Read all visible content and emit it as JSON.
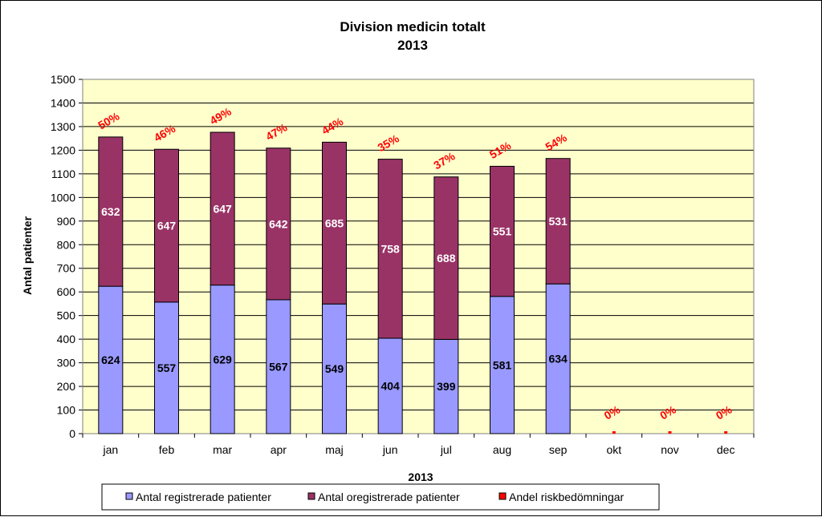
{
  "chart_data": {
    "type": "bar",
    "stacked": true,
    "title": "Division medicin totalt",
    "subtitle": "2013",
    "xlabel": "2013",
    "ylabel": "Antal patienter",
    "ylim": [
      0,
      1500
    ],
    "ytick_step": 100,
    "grid": true,
    "legend_position": "bottom",
    "categories": [
      "jan",
      "feb",
      "mar",
      "apr",
      "maj",
      "jun",
      "jul",
      "aug",
      "sep",
      "okt",
      "nov",
      "dec"
    ],
    "series": [
      {
        "name": "Antal registrerade patienter",
        "color": "#9999ff",
        "values": [
          624,
          557,
          629,
          567,
          549,
          404,
          399,
          581,
          634,
          0,
          0,
          0
        ]
      },
      {
        "name": "Antal oregistrerade patienter",
        "color": "#993366",
        "values": [
          632,
          647,
          647,
          642,
          685,
          758,
          688,
          551,
          531,
          0,
          0,
          0
        ]
      },
      {
        "name": "Andel riskbedömningar",
        "color": "#ff0000",
        "values": [
          "50%",
          "46%",
          "49%",
          "47%",
          "44%",
          "35%",
          "37%",
          "51%",
          "54%",
          "0%",
          "0%",
          "0%"
        ]
      }
    ],
    "plot_background": "#ffffcc"
  }
}
